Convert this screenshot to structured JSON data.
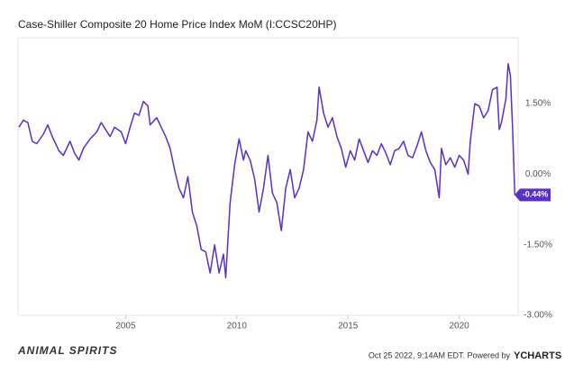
{
  "chart_data": {
    "type": "line",
    "title": "Case-Shiller Composite 20 Home Price Index MoM (I:CCSC20HP)",
    "x": [
      2000.2,
      2000.4,
      2000.6,
      2000.8,
      2001.0,
      2001.3,
      2001.5,
      2001.7,
      2002.0,
      2002.2,
      2002.5,
      2002.7,
      2002.9,
      2003.1,
      2003.4,
      2003.7,
      2003.9,
      2004.1,
      2004.3,
      2004.5,
      2004.8,
      2005.0,
      2005.2,
      2005.4,
      2005.6,
      2005.8,
      2006.0,
      2006.1,
      2006.4,
      2006.6,
      2006.8,
      2007.0,
      2007.2,
      2007.4,
      2007.6,
      2007.8,
      2008.0,
      2008.2,
      2008.4,
      2008.6,
      2008.8,
      2009.0,
      2009.2,
      2009.4,
      2009.5,
      2009.7,
      2009.9,
      2010.1,
      2010.3,
      2010.4,
      2010.6,
      2010.8,
      2011.0,
      2011.2,
      2011.4,
      2011.6,
      2011.8,
      2012.0,
      2012.2,
      2012.4,
      2012.6,
      2012.8,
      2013.0,
      2013.2,
      2013.4,
      2013.6,
      2013.7,
      2013.9,
      2014.1,
      2014.3,
      2014.5,
      2014.7,
      2014.9,
      2015.1,
      2015.3,
      2015.5,
      2015.7,
      2015.9,
      2016.1,
      2016.3,
      2016.5,
      2016.7,
      2016.9,
      2017.1,
      2017.3,
      2017.5,
      2017.7,
      2017.9,
      2018.1,
      2018.3,
      2018.5,
      2018.7,
      2018.9,
      2019.1,
      2019.2,
      2019.4,
      2019.6,
      2019.8,
      2020.0,
      2020.2,
      2020.4,
      2020.5,
      2020.7,
      2020.9,
      2021.1,
      2021.3,
      2021.5,
      2021.7,
      2021.8,
      2021.9,
      2022.1,
      2022.2,
      2022.3,
      2022.4,
      2022.5
    ],
    "series": [
      {
        "name": "Case-Shiller Composite 20 Home Price Index MoM",
        "color": "#5b2fc9",
        "values": [
          1.0,
          1.15,
          1.1,
          0.7,
          0.65,
          0.85,
          1.05,
          0.8,
          0.5,
          0.4,
          0.7,
          0.45,
          0.3,
          0.55,
          0.75,
          0.9,
          1.1,
          0.95,
          0.8,
          1.0,
          0.9,
          0.65,
          1.0,
          1.3,
          1.25,
          1.55,
          1.45,
          1.05,
          1.2,
          1.0,
          0.8,
          0.55,
          0.1,
          -0.3,
          -0.5,
          -0.05,
          -0.8,
          -1.1,
          -1.6,
          -1.65,
          -2.1,
          -1.5,
          -2.1,
          -1.7,
          -2.2,
          -0.6,
          0.2,
          0.75,
          0.3,
          0.5,
          0.3,
          -0.1,
          -0.8,
          -0.3,
          0.4,
          -0.4,
          -0.6,
          -1.2,
          -0.3,
          0.1,
          -0.5,
          -0.3,
          0.1,
          0.9,
          0.7,
          1.15,
          1.85,
          1.3,
          1.0,
          1.2,
          0.8,
          0.55,
          0.15,
          0.5,
          0.3,
          0.75,
          0.5,
          0.25,
          0.5,
          0.4,
          0.65,
          0.45,
          0.2,
          0.5,
          0.55,
          0.7,
          0.4,
          0.35,
          0.6,
          0.9,
          0.5,
          0.25,
          0.1,
          -0.5,
          0.55,
          0.2,
          0.35,
          0.15,
          0.4,
          0.3,
          0.0,
          0.7,
          1.5,
          1.45,
          1.2,
          1.35,
          1.8,
          1.85,
          0.95,
          1.1,
          1.6,
          2.35,
          2.1,
          1.0,
          -0.44
        ]
      }
    ],
    "annotation": {
      "value": -0.44,
      "label": "-0.44%"
    },
    "xlim": [
      2000.16,
      2022.65
    ],
    "xticks": [
      2005,
      2010,
      2015,
      2020
    ],
    "ylim": [
      -3.0,
      2.9
    ],
    "yticks": [
      {
        "value": 1.5,
        "label": "1.50%"
      },
      {
        "value": 0,
        "label": "0.00%"
      },
      {
        "value": -1.5,
        "label": "-1.50%"
      },
      {
        "value": -3.0,
        "label": "-3.00%"
      }
    ],
    "grid": false
  },
  "footer": {
    "logo": "ANIMAL SPIRITS",
    "timestamp": "Oct 25 2022, 9:14AM EDT. Powered by",
    "brand": "YCHARTS"
  }
}
